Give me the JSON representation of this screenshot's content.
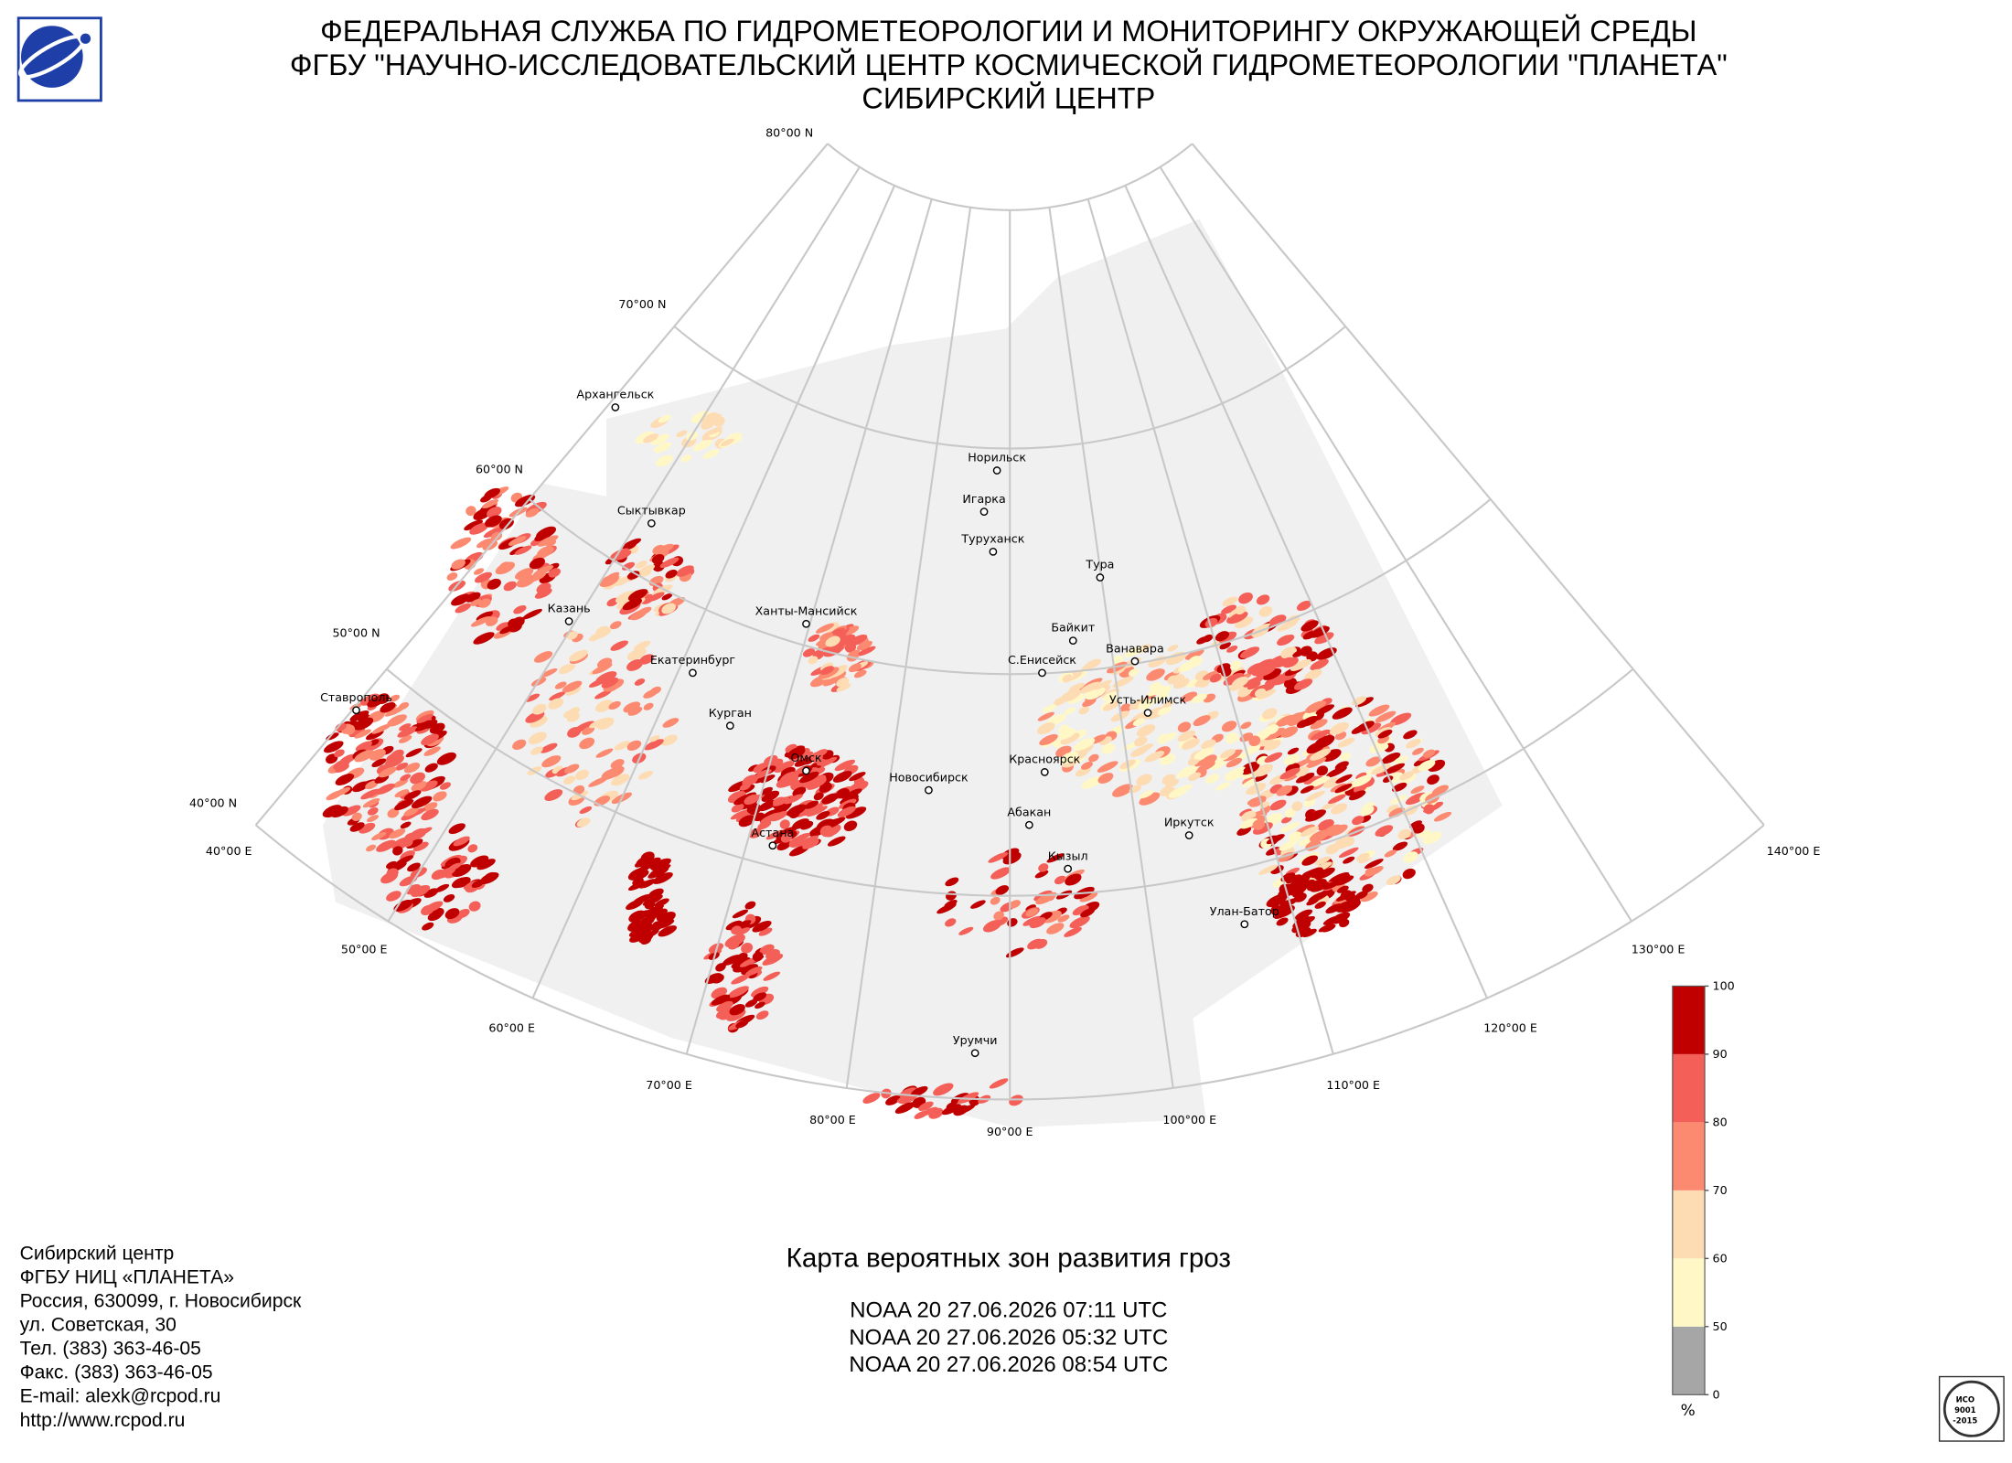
{
  "header": {
    "lines": [
      "ФЕДЕРАЛЬНАЯ СЛУЖБА ПО ГИДРОМЕТЕОРОЛОГИИ И МОНИТОРИНГУ ОКРУЖАЮЩЕЙ СРЕДЫ",
      "ФГБУ \"НАУЧНО-ИССЛЕДОВАТЕЛЬСКИЙ ЦЕНТР КОСМИЧЕСКОЙ ГИДРОМЕТЕОРОЛОГИИ \"ПЛАНЕТА\"",
      "СИБИРСКИЙ ЦЕНТР"
    ]
  },
  "map": {
    "latitude_labels": [
      "80°00 N",
      "70°00 N",
      "60°00 N",
      "50°00 N",
      "40°00 N"
    ],
    "longitude_labels": [
      "40°00 E",
      "50°00 E",
      "60°00 E",
      "70°00 E",
      "80°00 E",
      "90°00 E",
      "100°00 E",
      "110°00 E",
      "120°00 E",
      "130°00 E",
      "140°00 E"
    ],
    "cities": [
      "Архангельск",
      "Сыктывкар",
      "Казань",
      "Екатеринбург",
      "Курган",
      "Ставрополь",
      "Ханты-Мансийск",
      "Омск",
      "Новосибирск",
      "Астана",
      "Норильск",
      "Игарка",
      "Туруханск",
      "Тура",
      "Байкит",
      "Ванавара",
      "С.Енисейск",
      "Усть-Илимск",
      "Красноярск",
      "Абакан",
      "Кызыл",
      "Иркутск",
      "Улан-Батор",
      "Урумчи"
    ]
  },
  "legend": {
    "ticks": [
      0,
      50,
      60,
      70,
      80,
      90,
      100
    ],
    "colors": [
      "#a6a6a6",
      "#fff8c6",
      "#fddcb3",
      "#fb8a70",
      "#f45f58",
      "#c00000"
    ],
    "unit": "%"
  },
  "caption": {
    "title": "Карта вероятных зон развития гроз",
    "passes": [
      "NOAA 20 27.06.2026  07:11 UTC",
      "NOAA 20 27.06.2026  05:32 UTC",
      "NOAA 20 27.06.2026  08:54 UTC"
    ]
  },
  "contact": {
    "lines": [
      "Сибирский центр",
      "ФГБУ НИЦ «ПЛАНЕТА»",
      "Россия, 630099, г. Новосибирск",
      "ул. Советская, 30",
      "Тел. (383) 363-46-05",
      "Факс. (383) 363-46-05",
      "E-mail: alexk@rcpod.ru",
      "http://www.rcpod.ru"
    ]
  },
  "certification": {
    "lines": [
      "ИСО",
      "9001",
      "-2015"
    ]
  }
}
